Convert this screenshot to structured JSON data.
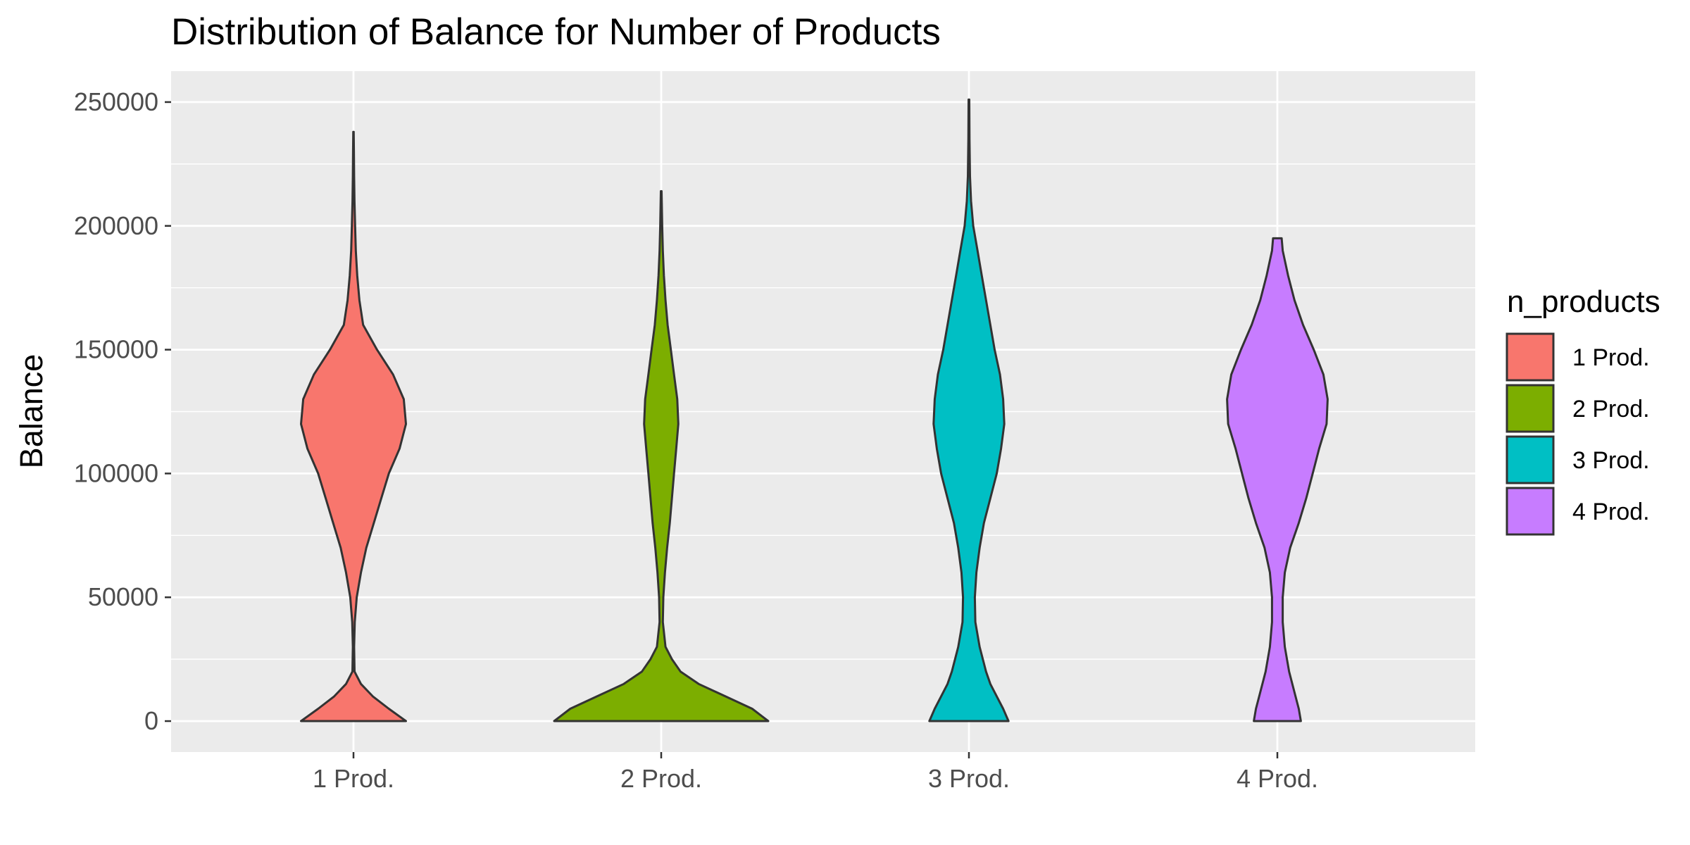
{
  "chart_data": {
    "type": "violin",
    "title": "Distribution of Balance for Number of Products",
    "xlabel": "",
    "ylabel": "Balance",
    "categories": [
      "1 Prod.",
      "2 Prod.",
      "3 Prod.",
      "4 Prod."
    ],
    "yticks": [
      0,
      50000,
      100000,
      150000,
      200000,
      250000
    ],
    "ytick_labels": [
      "0",
      "50000",
      "100000",
      "150000",
      "200000",
      "250000"
    ],
    "ylim": [
      -12500,
      262500
    ],
    "grid": true,
    "panel_background": "#ebebeb",
    "legend": {
      "title": "n_products",
      "placement": "right",
      "entries": [
        "1 Prod.",
        "2 Prod.",
        "3 Prod.",
        "4 Prod."
      ]
    },
    "colors": [
      "#f8766d",
      "#7cae00",
      "#00bfc4",
      "#c77cff"
    ],
    "violins": [
      {
        "name": "1 Prod.",
        "ymin": 0,
        "ymax": 238000,
        "profile": [
          [
            0,
            0.49
          ],
          [
            5000,
            0.33
          ],
          [
            10000,
            0.18
          ],
          [
            15000,
            0.07
          ],
          [
            20000,
            0.01
          ],
          [
            30000,
            0.006
          ],
          [
            40000,
            0.012
          ],
          [
            50000,
            0.03
          ],
          [
            60000,
            0.07
          ],
          [
            70000,
            0.12
          ],
          [
            80000,
            0.19
          ],
          [
            90000,
            0.26
          ],
          [
            100000,
            0.33
          ],
          [
            110000,
            0.43
          ],
          [
            120000,
            0.49
          ],
          [
            130000,
            0.47
          ],
          [
            140000,
            0.37
          ],
          [
            150000,
            0.22
          ],
          [
            160000,
            0.09
          ],
          [
            170000,
            0.055
          ],
          [
            180000,
            0.035
          ],
          [
            190000,
            0.022
          ],
          [
            200000,
            0.015
          ],
          [
            210000,
            0.009
          ],
          [
            220000,
            0.006
          ],
          [
            230000,
            0.004
          ],
          [
            238000,
            0.002
          ]
        ]
      },
      {
        "name": "2 Prod.",
        "ymin": 0,
        "ymax": 214000,
        "profile": [
          [
            0,
            1.0
          ],
          [
            5000,
            0.85
          ],
          [
            10000,
            0.6
          ],
          [
            15000,
            0.35
          ],
          [
            20000,
            0.18
          ],
          [
            25000,
            0.1
          ],
          [
            30000,
            0.04
          ],
          [
            40000,
            0.015
          ],
          [
            50000,
            0.02
          ],
          [
            60000,
            0.035
          ],
          [
            70000,
            0.055
          ],
          [
            80000,
            0.08
          ],
          [
            90000,
            0.1
          ],
          [
            100000,
            0.12
          ],
          [
            110000,
            0.14
          ],
          [
            120000,
            0.16
          ],
          [
            130000,
            0.15
          ],
          [
            140000,
            0.12
          ],
          [
            150000,
            0.09
          ],
          [
            160000,
            0.06
          ],
          [
            170000,
            0.04
          ],
          [
            180000,
            0.025
          ],
          [
            190000,
            0.015
          ],
          [
            200000,
            0.009
          ],
          [
            214000,
            0.003
          ]
        ]
      },
      {
        "name": "3 Prod.",
        "ymin": 0,
        "ymax": 251000,
        "profile": [
          [
            0,
            0.37
          ],
          [
            5000,
            0.32
          ],
          [
            10000,
            0.26
          ],
          [
            15000,
            0.2
          ],
          [
            20000,
            0.16
          ],
          [
            30000,
            0.1
          ],
          [
            40000,
            0.06
          ],
          [
            50000,
            0.055
          ],
          [
            60000,
            0.07
          ],
          [
            70000,
            0.1
          ],
          [
            80000,
            0.14
          ],
          [
            90000,
            0.2
          ],
          [
            100000,
            0.26
          ],
          [
            110000,
            0.3
          ],
          [
            120000,
            0.33
          ],
          [
            130000,
            0.32
          ],
          [
            140000,
            0.29
          ],
          [
            150000,
            0.24
          ],
          [
            160000,
            0.2
          ],
          [
            170000,
            0.16
          ],
          [
            180000,
            0.12
          ],
          [
            190000,
            0.08
          ],
          [
            200000,
            0.04
          ],
          [
            210000,
            0.02
          ],
          [
            220000,
            0.01
          ],
          [
            235000,
            0.005
          ],
          [
            251000,
            0.003
          ]
        ]
      },
      {
        "name": "4 Prod.",
        "ymin": 0,
        "ymax": 195000,
        "profile": [
          [
            0,
            0.22
          ],
          [
            5000,
            0.2
          ],
          [
            10000,
            0.17
          ],
          [
            20000,
            0.11
          ],
          [
            30000,
            0.07
          ],
          [
            40000,
            0.05
          ],
          [
            50000,
            0.05
          ],
          [
            60000,
            0.07
          ],
          [
            70000,
            0.12
          ],
          [
            80000,
            0.2
          ],
          [
            90000,
            0.27
          ],
          [
            100000,
            0.33
          ],
          [
            110000,
            0.39
          ],
          [
            120000,
            0.46
          ],
          [
            130000,
            0.47
          ],
          [
            140000,
            0.43
          ],
          [
            150000,
            0.34
          ],
          [
            160000,
            0.24
          ],
          [
            170000,
            0.16
          ],
          [
            180000,
            0.1
          ],
          [
            190000,
            0.05
          ],
          [
            195000,
            0.04
          ]
        ]
      }
    ]
  }
}
